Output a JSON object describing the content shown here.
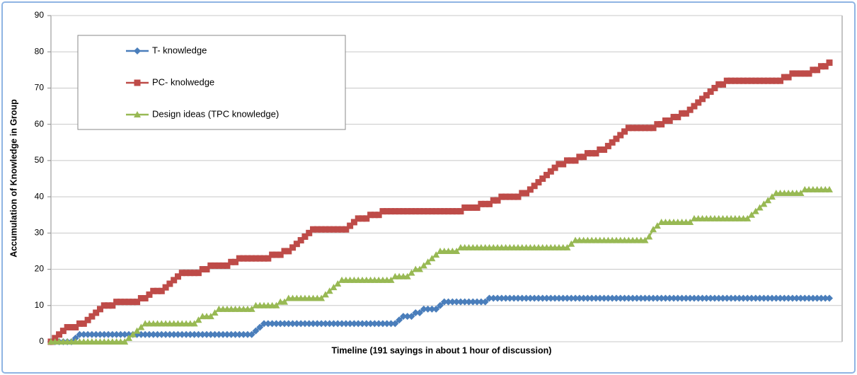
{
  "chart_data": {
    "type": "line",
    "x_label": "Timeline (191 sayings in about 1 hour of discussion)",
    "y_label": "Accumulation of Knowledge in Group",
    "ylim": [
      0,
      90
    ],
    "yticks": [
      0,
      10,
      20,
      30,
      40,
      50,
      60,
      70,
      80,
      90
    ],
    "grid": true,
    "legend": "upper left",
    "categories": [
      null,
      null,
      null,
      null,
      null,
      null,
      null,
      null,
      null,
      null,
      null,
      null,
      null,
      null,
      null,
      null,
      null,
      null,
      null,
      null,
      null,
      null,
      null,
      null,
      null,
      null,
      null,
      null,
      null,
      null,
      null,
      null,
      null,
      null,
      null,
      null,
      null,
      null,
      null,
      null,
      null,
      null,
      null,
      null,
      null,
      null,
      null,
      null,
      null,
      null,
      null,
      null,
      null,
      null,
      null,
      null,
      null,
      null,
      null,
      null,
      null,
      null,
      null,
      null,
      null,
      null,
      null,
      null,
      null,
      null,
      null,
      null,
      null,
      null,
      null,
      null,
      null,
      null,
      null,
      null,
      null,
      null,
      null,
      null,
      null,
      null,
      null,
      null,
      null,
      null,
      null,
      null,
      null,
      null,
      null,
      null,
      null,
      null,
      null,
      null,
      null,
      null,
      null,
      null,
      null,
      null,
      null,
      null,
      null,
      null,
      null,
      null,
      null,
      null,
      null,
      null,
      null,
      null,
      null,
      null,
      null,
      null,
      null,
      null,
      null,
      null,
      null,
      null,
      null,
      null,
      null,
      null,
      null,
      null,
      null,
      null,
      null,
      null,
      null,
      null,
      null,
      null,
      null,
      null,
      null,
      null,
      null,
      null,
      null,
      null,
      null,
      null,
      null,
      null,
      null,
      null,
      null,
      null,
      null,
      null,
      null,
      null,
      null,
      null,
      null,
      null,
      null,
      null,
      null,
      null,
      null,
      null,
      null,
      null,
      null,
      null,
      null,
      null,
      null,
      null,
      null,
      null,
      null,
      null,
      null,
      null,
      null,
      null,
      null,
      null,
      null
    ],
    "series": [
      {
        "name": "T- knowledge",
        "color": "#4a7ebb",
        "marker": "diamond",
        "values": [
          0,
          0,
          0,
          0,
          0,
          0,
          1,
          2,
          2,
          2,
          2,
          2,
          2,
          2,
          2,
          2,
          2,
          2,
          2,
          2,
          2,
          2,
          2,
          2,
          2,
          2,
          2,
          2,
          2,
          2,
          2,
          2,
          2,
          2,
          2,
          2,
          2,
          2,
          2,
          2,
          2,
          2,
          2,
          2,
          2,
          2,
          2,
          2,
          2,
          2,
          3,
          4,
          5,
          5,
          5,
          5,
          5,
          5,
          5,
          5,
          5,
          5,
          5,
          5,
          5,
          5,
          5,
          5,
          5,
          5,
          5,
          5,
          5,
          5,
          5,
          5,
          5,
          5,
          5,
          5,
          5,
          5,
          5,
          5,
          5,
          6,
          7,
          7,
          7,
          8,
          8,
          9,
          9,
          9,
          9,
          10,
          11,
          11,
          11,
          11,
          11,
          11,
          11,
          11,
          11,
          11,
          11,
          12,
          12,
          12,
          12,
          12,
          12,
          12,
          12,
          12,
          12,
          12,
          12,
          12,
          12,
          12,
          12,
          12,
          12,
          12,
          12,
          12,
          12,
          12,
          12,
          12,
          12,
          12,
          12,
          12,
          12,
          12,
          12,
          12,
          12,
          12,
          12,
          12,
          12,
          12,
          12,
          12,
          12,
          12,
          12,
          12,
          12,
          12,
          12,
          12,
          12,
          12,
          12,
          12,
          12,
          12,
          12,
          12,
          12,
          12,
          12,
          12,
          12,
          12,
          12,
          12,
          12,
          12,
          12,
          12,
          12,
          12,
          12,
          12,
          12,
          12,
          12,
          12,
          12,
          12,
          12,
          12,
          12,
          12,
          12
        ]
      },
      {
        "name": "PC- knolwedge",
        "color": "#be4b48",
        "marker": "square",
        "values": [
          0,
          1,
          2,
          3,
          4,
          4,
          4,
          5,
          5,
          6,
          7,
          8,
          9,
          10,
          10,
          10,
          11,
          11,
          11,
          11,
          11,
          11,
          12,
          12,
          13,
          14,
          14,
          14,
          15,
          16,
          17,
          18,
          19,
          19,
          19,
          19,
          19,
          20,
          20,
          21,
          21,
          21,
          21,
          21,
          22,
          22,
          23,
          23,
          23,
          23,
          23,
          23,
          23,
          23,
          24,
          24,
          24,
          25,
          25,
          26,
          27,
          28,
          29,
          30,
          31,
          31,
          31,
          31,
          31,
          31,
          31,
          31,
          31,
          32,
          33,
          34,
          34,
          34,
          35,
          35,
          35,
          36,
          36,
          36,
          36,
          36,
          36,
          36,
          36,
          36,
          36,
          36,
          36,
          36,
          36,
          36,
          36,
          36,
          36,
          36,
          36,
          37,
          37,
          37,
          37,
          38,
          38,
          38,
          39,
          39,
          40,
          40,
          40,
          40,
          40,
          41,
          41,
          42,
          43,
          44,
          45,
          46,
          47,
          48,
          49,
          49,
          50,
          50,
          50,
          51,
          51,
          52,
          52,
          52,
          53,
          53,
          54,
          55,
          56,
          57,
          58,
          59,
          59,
          59,
          59,
          59,
          59,
          59,
          60,
          60,
          61,
          61,
          62,
          62,
          63,
          63,
          64,
          65,
          66,
          67,
          68,
          69,
          70,
          71,
          71,
          72,
          72,
          72,
          72,
          72,
          72,
          72,
          72,
          72,
          72,
          72,
          72,
          72,
          72,
          73,
          73,
          74,
          74,
          74,
          74,
          74,
          75,
          75,
          76,
          76,
          77
        ]
      },
      {
        "name": "Design ideas (TPC knowledge)",
        "color": "#98b954",
        "marker": "triangle",
        "values": [
          0,
          0,
          0,
          0,
          0,
          0,
          0,
          0,
          0,
          0,
          0,
          0,
          0,
          0,
          0,
          0,
          0,
          0,
          0,
          1,
          2,
          3,
          4,
          5,
          5,
          5,
          5,
          5,
          5,
          5,
          5,
          5,
          5,
          5,
          5,
          5,
          6,
          7,
          7,
          7,
          8,
          9,
          9,
          9,
          9,
          9,
          9,
          9,
          9,
          9,
          10,
          10,
          10,
          10,
          10,
          10,
          11,
          11,
          12,
          12,
          12,
          12,
          12,
          12,
          12,
          12,
          12,
          13,
          14,
          15,
          16,
          17,
          17,
          17,
          17,
          17,
          17,
          17,
          17,
          17,
          17,
          17,
          17,
          17,
          18,
          18,
          18,
          18,
          19,
          20,
          20,
          21,
          22,
          23,
          24,
          25,
          25,
          25,
          25,
          25,
          26,
          26,
          26,
          26,
          26,
          26,
          26,
          26,
          26,
          26,
          26,
          26,
          26,
          26,
          26,
          26,
          26,
          26,
          26,
          26,
          26,
          26,
          26,
          26,
          26,
          26,
          26,
          27,
          28,
          28,
          28,
          28,
          28,
          28,
          28,
          28,
          28,
          28,
          28,
          28,
          28,
          28,
          28,
          28,
          28,
          28,
          29,
          31,
          32,
          33,
          33,
          33,
          33,
          33,
          33,
          33,
          33,
          34,
          34,
          34,
          34,
          34,
          34,
          34,
          34,
          34,
          34,
          34,
          34,
          34,
          34,
          35,
          36,
          37,
          38,
          39,
          40,
          41,
          41,
          41,
          41,
          41,
          41,
          41,
          42,
          42,
          42,
          42,
          42,
          42,
          42
        ]
      }
    ]
  }
}
